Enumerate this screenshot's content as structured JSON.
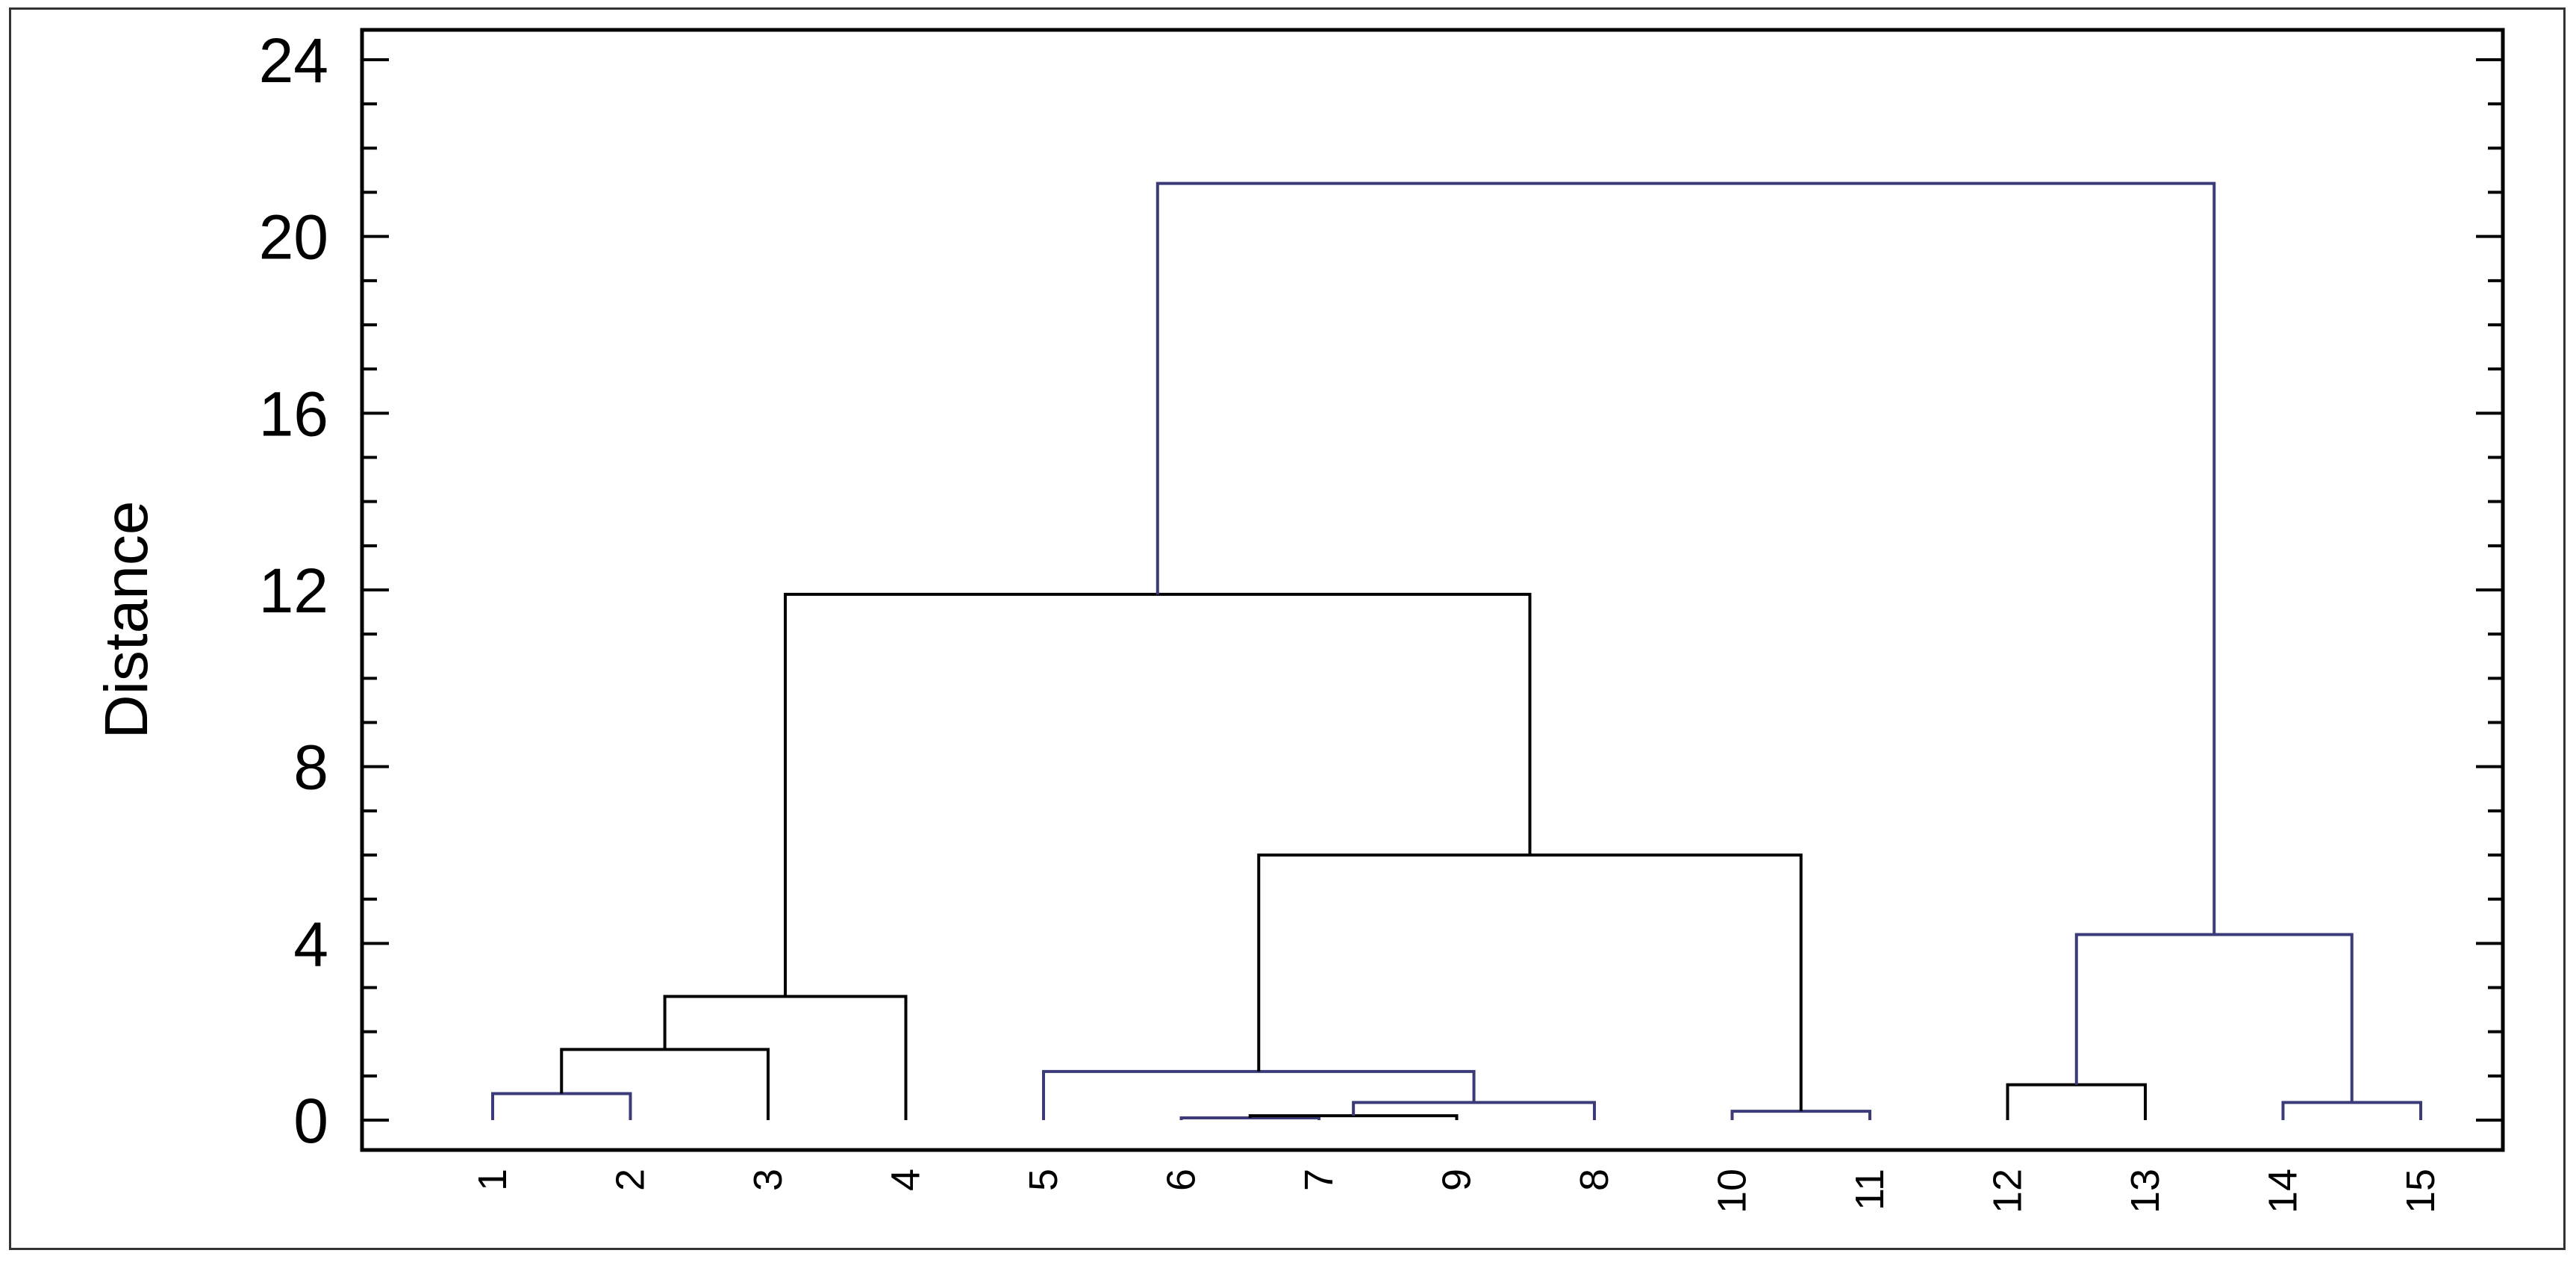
{
  "chart_data": {
    "type": "dendrogram",
    "ylabel": "Distance",
    "ylim": [
      -0.6,
      24.7
    ],
    "yticks": [
      0,
      4,
      8,
      12,
      16,
      20,
      24
    ],
    "leaf_order": [
      "1",
      "2",
      "3",
      "4",
      "5",
      "6",
      "7",
      "9",
      "8",
      "10",
      "11",
      "12",
      "13",
      "14",
      "15"
    ],
    "merges": [
      {
        "id": "A",
        "left": "1",
        "right": "2",
        "height": 0.6,
        "color": "#3b3b7a"
      },
      {
        "id": "B",
        "left": "A",
        "right": "3",
        "height": 1.6,
        "color": "#000000"
      },
      {
        "id": "C",
        "left": "B",
        "right": "4",
        "height": 2.8,
        "color": "#000000"
      },
      {
        "id": "D",
        "left": "6",
        "right": "7",
        "height": 0.05,
        "color": "#3b3b7a"
      },
      {
        "id": "E",
        "left": "D",
        "right": "9",
        "height": 0.1,
        "color": "#000000"
      },
      {
        "id": "F",
        "left": "E",
        "right": "8",
        "height": 0.4,
        "color": "#3b3b7a"
      },
      {
        "id": "G",
        "left": "5",
        "right": "F",
        "height": 1.1,
        "color": "#3b3b7a"
      },
      {
        "id": "H",
        "left": "10",
        "right": "11",
        "height": 0.2,
        "color": "#3b3b7a"
      },
      {
        "id": "I",
        "left": "G",
        "right": "H",
        "height": 6.0,
        "color": "#000000"
      },
      {
        "id": "J",
        "left": "C",
        "right": "I",
        "height": 11.9,
        "color": "#000000"
      },
      {
        "id": "K",
        "left": "12",
        "right": "13",
        "height": 0.8,
        "color": "#000000"
      },
      {
        "id": "L",
        "left": "14",
        "right": "15",
        "height": 0.4,
        "color": "#3b3b7a"
      },
      {
        "id": "M",
        "left": "K",
        "right": "L",
        "height": 4.2,
        "color": "#3b3b7a"
      },
      {
        "id": "N",
        "left": "J",
        "right": "M",
        "height": 21.2,
        "color": "#3b3b7a"
      }
    ]
  }
}
